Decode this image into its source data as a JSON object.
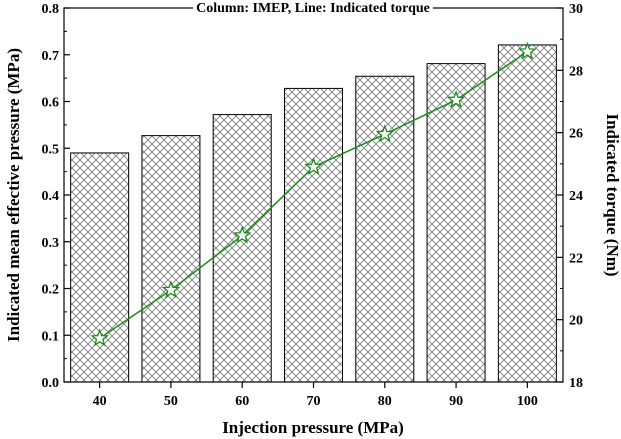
{
  "chart_data": {
    "type": "bar",
    "title": "Column: IMEP, Line: Indicated torque",
    "xlabel": "Injection pressure (MPa)",
    "ylabel": "Indicated mean effective pressure (MPa)",
    "y2label": "Indicated torque (Nm)",
    "categories": [
      "40",
      "50",
      "60",
      "70",
      "80",
      "90",
      "100"
    ],
    "ylim": [
      0,
      0.8
    ],
    "yticks": [
      "0.0",
      "0.1",
      "0.2",
      "0.3",
      "0.4",
      "0.5",
      "0.6",
      "0.7",
      "0.8"
    ],
    "y2lim": [
      18,
      30
    ],
    "y2ticks": [
      "18",
      "20",
      "22",
      "24",
      "26",
      "28",
      "30"
    ],
    "grid": false,
    "series": [
      {
        "name": "IMEP",
        "type": "bar",
        "axis": "left",
        "pattern": "crosshatch",
        "color": "#000000",
        "values": [
          0.49,
          0.527,
          0.572,
          0.628,
          0.654,
          0.681,
          0.721
        ]
      },
      {
        "name": "Indicated torque",
        "type": "line",
        "axis": "right",
        "marker": "star",
        "color": "#1a8a1a",
        "values": [
          19.4,
          20.95,
          22.7,
          24.9,
          25.95,
          27.05,
          28.6
        ]
      }
    ]
  }
}
